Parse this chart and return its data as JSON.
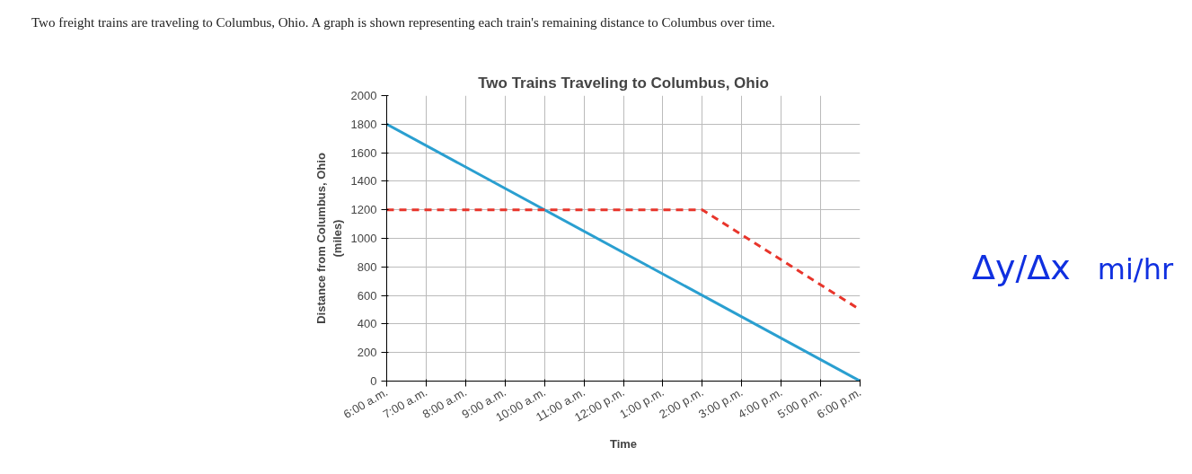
{
  "chart_data": {
    "type": "line",
    "title": "Two Trains Traveling to Columbus, Ohio",
    "xlabel": "Time",
    "ylabel": "Distance from Columbus, Ohio\n(miles)",
    "annotations": [
      "Two freight trains are traveling to Columbus, Ohio. A graph is shown representing each train's remaining distance to Columbus over time.",
      "Δy/Δx",
      "mi/hr"
    ],
    "series": [
      {
        "color": "#2a9fd0",
        "line_style": "solid",
        "x": [
          6,
          18
        ],
        "values": [
          1800,
          0
        ]
      },
      {
        "color": "#e8352b",
        "line_style": "dashed",
        "x": [
          6,
          14,
          18
        ],
        "values": [
          1200,
          1200,
          500
        ]
      }
    ],
    "xlim": [
      6,
      18
    ],
    "xticks": [
      {
        "value": 6,
        "label": "6:00 a.m."
      },
      {
        "value": 7,
        "label": "7:00 a.m."
      },
      {
        "value": 8,
        "label": "8:00 a.m."
      },
      {
        "value": 9,
        "label": "9:00 a.m."
      },
      {
        "value": 10,
        "label": "10:00 a.m."
      },
      {
        "value": 11,
        "label": "11:00 a.m."
      },
      {
        "value": 12,
        "label": "12:00 p.m."
      },
      {
        "value": 13,
        "label": "1:00 p.m."
      },
      {
        "value": 14,
        "label": "2:00 p.m."
      },
      {
        "value": 15,
        "label": "3:00 p.m."
      },
      {
        "value": 16,
        "label": "4:00 p.m."
      },
      {
        "value": 17,
        "label": "5:00 p.m."
      },
      {
        "value": 18,
        "label": "6:00 p.m."
      }
    ],
    "ylim": [
      0,
      2000
    ],
    "yticks": [
      0,
      200,
      400,
      600,
      800,
      1000,
      1200,
      1400,
      1600,
      1800,
      2000
    ],
    "grid": true
  }
}
